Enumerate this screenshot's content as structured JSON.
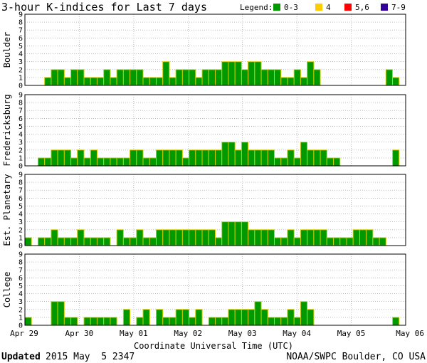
{
  "chart_data": {
    "type": "bar",
    "title": "3-hour K-indices for Last 7 days",
    "xlabel": "Coordinate Universal Time (UTC)",
    "ylim": [
      0,
      9
    ],
    "yticks": [
      "0",
      "1",
      "2",
      "3",
      "4",
      "5",
      "6",
      "7",
      "8",
      "9"
    ],
    "x_tick_labels": [
      "Apr 29",
      "Apr 30",
      "May 01",
      "May 02",
      "May 03",
      "May 04",
      "May 05",
      "May 06"
    ],
    "grid": true,
    "legend": {
      "label": "Legend:",
      "position": "top-right",
      "items": [
        {
          "label": "0-3",
          "color": "#009900"
        },
        {
          "label": "4",
          "color": "#ffcc00"
        },
        {
          "label": "5,6",
          "color": "#ff0000"
        },
        {
          "label": "7-9",
          "color": "#330099"
        }
      ]
    },
    "panels": [
      {
        "name": "Boulder",
        "values": [
          0,
          0,
          0,
          1,
          2,
          2,
          1,
          2,
          2,
          1,
          1,
          1,
          2,
          1,
          2,
          2,
          2,
          2,
          1,
          1,
          1,
          3,
          1,
          2,
          2,
          2,
          1,
          2,
          2,
          2,
          3,
          3,
          3,
          2,
          3,
          3,
          2,
          2,
          2,
          1,
          1,
          2,
          1,
          3,
          2,
          0,
          0,
          0,
          0,
          0,
          0,
          0,
          0,
          0,
          0,
          2,
          1,
          0
        ]
      },
      {
        "name": "Fredericksburg",
        "values": [
          0,
          0,
          1,
          1,
          2,
          2,
          2,
          1,
          2,
          1,
          2,
          1,
          1,
          1,
          1,
          1,
          2,
          2,
          1,
          1,
          2,
          2,
          2,
          2,
          1,
          2,
          2,
          2,
          2,
          2,
          3,
          3,
          2,
          3,
          2,
          2,
          2,
          2,
          1,
          1,
          2,
          1,
          3,
          2,
          2,
          2,
          1,
          1,
          0,
          0,
          0,
          0,
          0,
          0,
          0,
          0,
          2,
          0
        ]
      },
      {
        "name": "Est. Planetary",
        "values": [
          1,
          0,
          1,
          1,
          2,
          1,
          1,
          1,
          2,
          1,
          1,
          1,
          1,
          0,
          2,
          1,
          1,
          2,
          1,
          1,
          2,
          2,
          2,
          2,
          2,
          2,
          2,
          2,
          2,
          1,
          3,
          3,
          3,
          3,
          2,
          2,
          2,
          2,
          1,
          1,
          2,
          1,
          2,
          2,
          2,
          2,
          1,
          1,
          1,
          1,
          2,
          2,
          2,
          1,
          1,
          0,
          0,
          0
        ]
      },
      {
        "name": "College",
        "values": [
          1,
          0,
          0,
          0,
          3,
          3,
          1,
          1,
          0,
          1,
          1,
          1,
          1,
          1,
          0,
          2,
          0,
          1,
          2,
          0,
          2,
          1,
          1,
          2,
          2,
          1,
          2,
          0,
          1,
          1,
          1,
          2,
          2,
          2,
          2,
          3,
          2,
          1,
          1,
          1,
          2,
          1,
          3,
          2,
          0,
          0,
          0,
          0,
          0,
          0,
          0,
          0,
          0,
          0,
          0,
          0,
          1,
          0
        ]
      }
    ]
  },
  "colors": {
    "bar_quiet": "#009900",
    "bar_outline": "#cccc00",
    "grid": "#999999"
  },
  "footer": {
    "updated_label": "Updated",
    "updated_value": "2015 May  5 2347",
    "source": "NOAA/SWPC Boulder, CO USA"
  }
}
